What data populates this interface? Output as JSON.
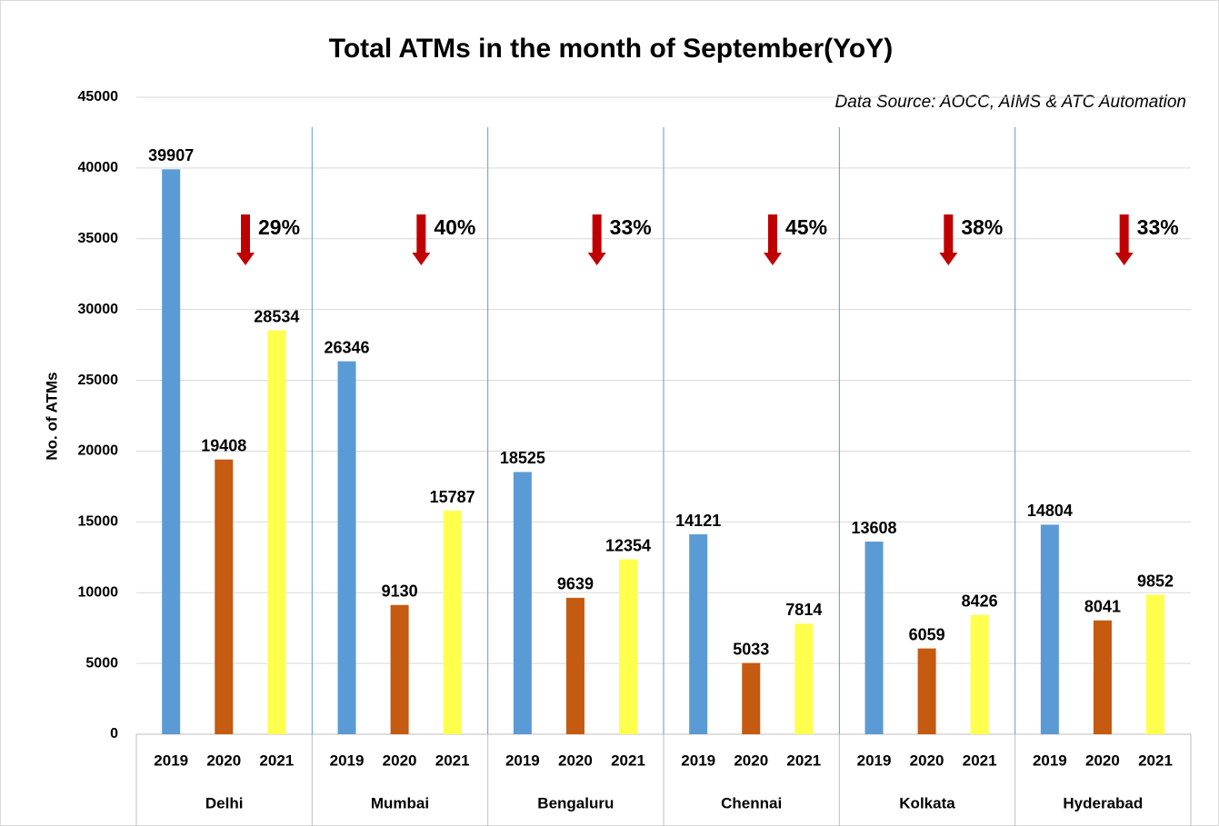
{
  "chart_data": {
    "type": "bar",
    "title": "Total ATMs in the month of September(YoY)",
    "source": "Data Source: AOCC, AIMS & ATC Automation",
    "y_label": "No. of ATMs",
    "categories": [
      "Delhi",
      "Mumbai",
      "Bengaluru",
      "Chennai",
      "Kolkata",
      "Hyderabad"
    ],
    "series": [
      {
        "name": "2019",
        "color": "#5b9bd5",
        "values": [
          39907,
          26346,
          18525,
          14121,
          13608,
          14804
        ]
      },
      {
        "name": "2020",
        "color": "#c55a11",
        "values": [
          19408,
          9130,
          9639,
          5033,
          6059,
          8041
        ]
      },
      {
        "name": "2021",
        "color": "#ffff4d",
        "values": [
          28534,
          15787,
          12354,
          7814,
          8426,
          9852
        ]
      }
    ],
    "annotations": [
      "29%",
      "40%",
      "33%",
      "45%",
      "38%",
      "33%"
    ],
    "ylim": [
      0,
      45000
    ],
    "yticks": [
      0,
      5000,
      10000,
      15000,
      20000,
      25000,
      30000,
      35000,
      40000,
      45000
    ],
    "grid": true
  }
}
